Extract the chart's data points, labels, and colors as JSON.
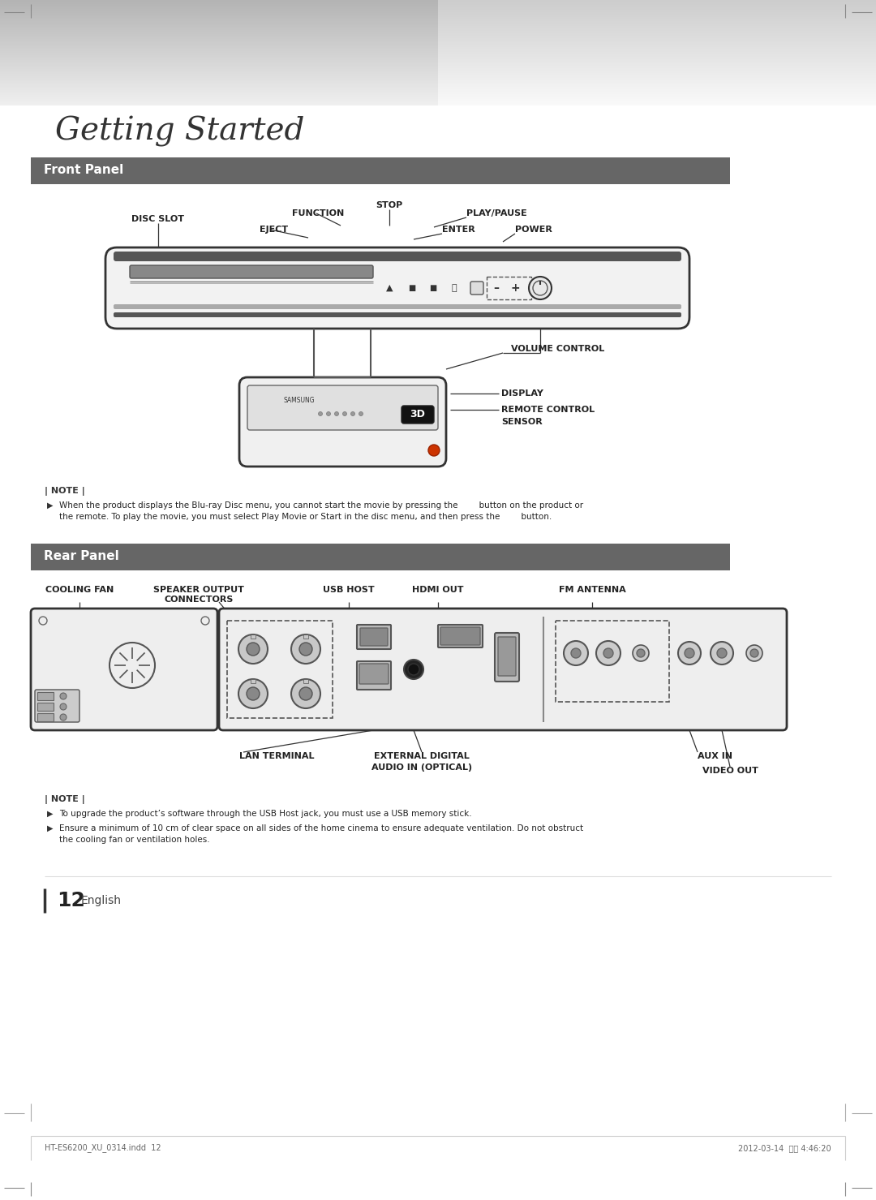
{
  "page_bg": "#ffffff",
  "content_bg": "#ffffff",
  "section_header_bg": "#666666",
  "section_header_fg": "#ffffff",
  "title_text": "Getting Started",
  "section1_title": "Front Panel",
  "section2_title": "Rear Panel",
  "note_marker": "| NOTE |",
  "note1_line1": "When the product displays the Blu-ray Disc menu, you cannot start the movie by pressing the        button on the product or",
  "note1_line2": "the remote. To play the movie, you must select Play Movie or Start in the disc menu, and then press the        button.",
  "note2_line1": "To upgrade the product’s software through the USB Host jack, you must use a USB memory stick.",
  "note2_line2": "Ensure a minimum of 10 cm of clear space on all sides of the home cinema to ensure adequate ventilation. Do not obstruct",
  "note2_line3": "the cooling fan or ventilation holes.",
  "footer_left": "HT-ES6200_XU_0314.indd  12",
  "footer_right": "2012-03-14  오후 4:46:20",
  "page_num": "12",
  "page_lang": "English"
}
